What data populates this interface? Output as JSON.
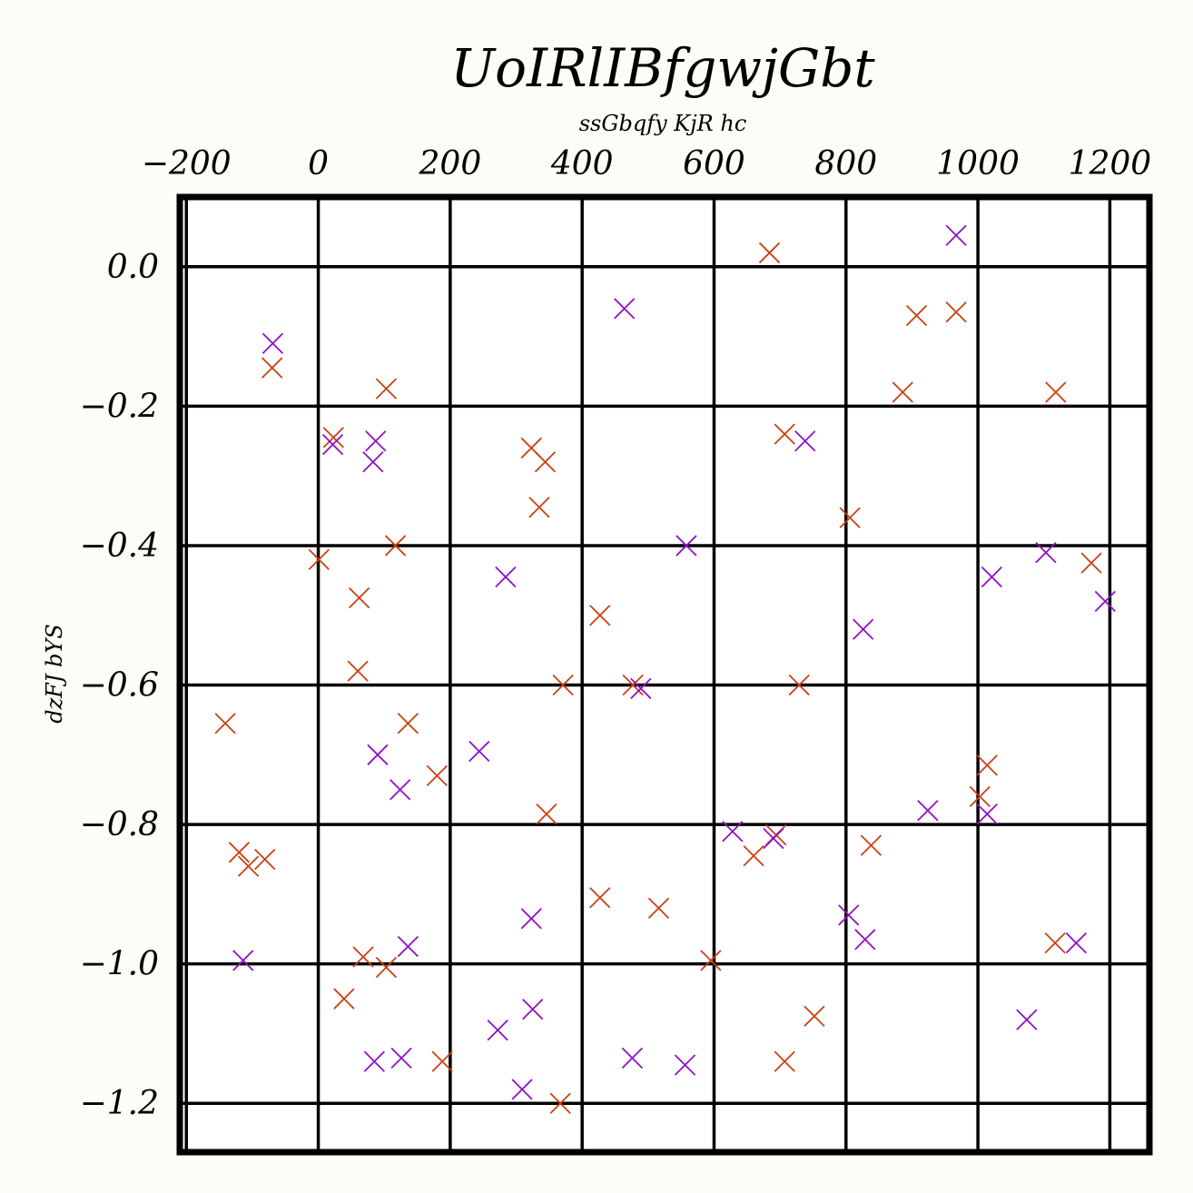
{
  "chart_data": {
    "type": "scatter",
    "title": "UoIRlIBfgwjGbt",
    "xlabel": "ssGbqfy KjR hc",
    "ylabel": "dzFJ bYS",
    "x_axis_position": "top",
    "xlim": [
      -210,
      1260
    ],
    "ylim": [
      -1.27,
      0.1
    ],
    "xticks": [
      -200,
      0,
      200,
      400,
      600,
      800,
      1000,
      1200
    ],
    "xtick_labels": [
      "−200",
      "0",
      "200",
      "400",
      "600",
      "800",
      "1000",
      "1200"
    ],
    "yticks": [
      0.0,
      -0.2,
      -0.4,
      -0.6,
      -0.8,
      -1.0,
      -1.2
    ],
    "ytick_labels": [
      "0.0",
      "−0.2",
      "−0.4",
      "−0.6",
      "−0.8",
      "−1.0",
      "−1.2"
    ],
    "grid": true,
    "marker": "x",
    "series": [
      {
        "color": "#cc4010",
        "points": [
          [
            684,
            0.02
          ],
          [
            907,
            -0.07
          ],
          [
            967,
            -0.065
          ],
          [
            -70,
            -0.145
          ],
          [
            103,
            -0.175
          ],
          [
            886,
            -0.18
          ],
          [
            1118,
            -0.18
          ],
          [
            23,
            -0.245
          ],
          [
            323,
            -0.26
          ],
          [
            344,
            -0.28
          ],
          [
            707,
            -0.24
          ],
          [
            335,
            -0.345
          ],
          [
            806,
            -0.36
          ],
          [
            117,
            -0.4
          ],
          [
            1,
            -0.42
          ],
          [
            1172,
            -0.425
          ],
          [
            62,
            -0.475
          ],
          [
            427,
            -0.5
          ],
          [
            60,
            -0.58
          ],
          [
            371,
            -0.6
          ],
          [
            477,
            -0.6
          ],
          [
            729,
            -0.6
          ],
          [
            -141,
            -0.655
          ],
          [
            136,
            -0.655
          ],
          [
            180,
            -0.73
          ],
          [
            1014,
            -0.715
          ],
          [
            1003,
            -0.76
          ],
          [
            346,
            -0.785
          ],
          [
            694,
            -0.815
          ],
          [
            660,
            -0.845
          ],
          [
            838,
            -0.83
          ],
          [
            -120,
            -0.84
          ],
          [
            -106,
            -0.86
          ],
          [
            -81,
            -0.85
          ],
          [
            427,
            -0.905
          ],
          [
            516,
            -0.92
          ],
          [
            68,
            -0.99
          ],
          [
            103,
            -1.005
          ],
          [
            595,
            -0.995
          ],
          [
            1117,
            -0.97
          ],
          [
            39,
            -1.05
          ],
          [
            752,
            -1.075
          ],
          [
            188,
            -1.14
          ],
          [
            707,
            -1.14
          ],
          [
            367,
            -1.2
          ]
        ]
      },
      {
        "color": "#9010c8",
        "points": [
          [
            967,
            0.045
          ],
          [
            464,
            -0.06
          ],
          [
            -69,
            -0.11
          ],
          [
            22,
            -0.255
          ],
          [
            87,
            -0.25
          ],
          [
            83,
            -0.28
          ],
          [
            738,
            -0.25
          ],
          [
            558,
            -0.4
          ],
          [
            284,
            -0.445
          ],
          [
            1103,
            -0.41
          ],
          [
            1021,
            -0.445
          ],
          [
            1193,
            -0.48
          ],
          [
            826,
            -0.52
          ],
          [
            489,
            -0.605
          ],
          [
            90,
            -0.7
          ],
          [
            244,
            -0.695
          ],
          [
            124,
            -0.75
          ],
          [
            924,
            -0.78
          ],
          [
            1014,
            -0.785
          ],
          [
            628,
            -0.81
          ],
          [
            690,
            -0.82
          ],
          [
            323,
            -0.935
          ],
          [
            804,
            -0.93
          ],
          [
            829,
            -0.965
          ],
          [
            -114,
            -0.995
          ],
          [
            136,
            -0.975
          ],
          [
            1149,
            -0.97
          ],
          [
            272,
            -1.095
          ],
          [
            325,
            -1.065
          ],
          [
            1074,
            -1.08
          ],
          [
            85,
            -1.14
          ],
          [
            126,
            -1.135
          ],
          [
            476,
            -1.135
          ],
          [
            556,
            -1.145
          ],
          [
            309,
            -1.18
          ]
        ]
      }
    ]
  }
}
